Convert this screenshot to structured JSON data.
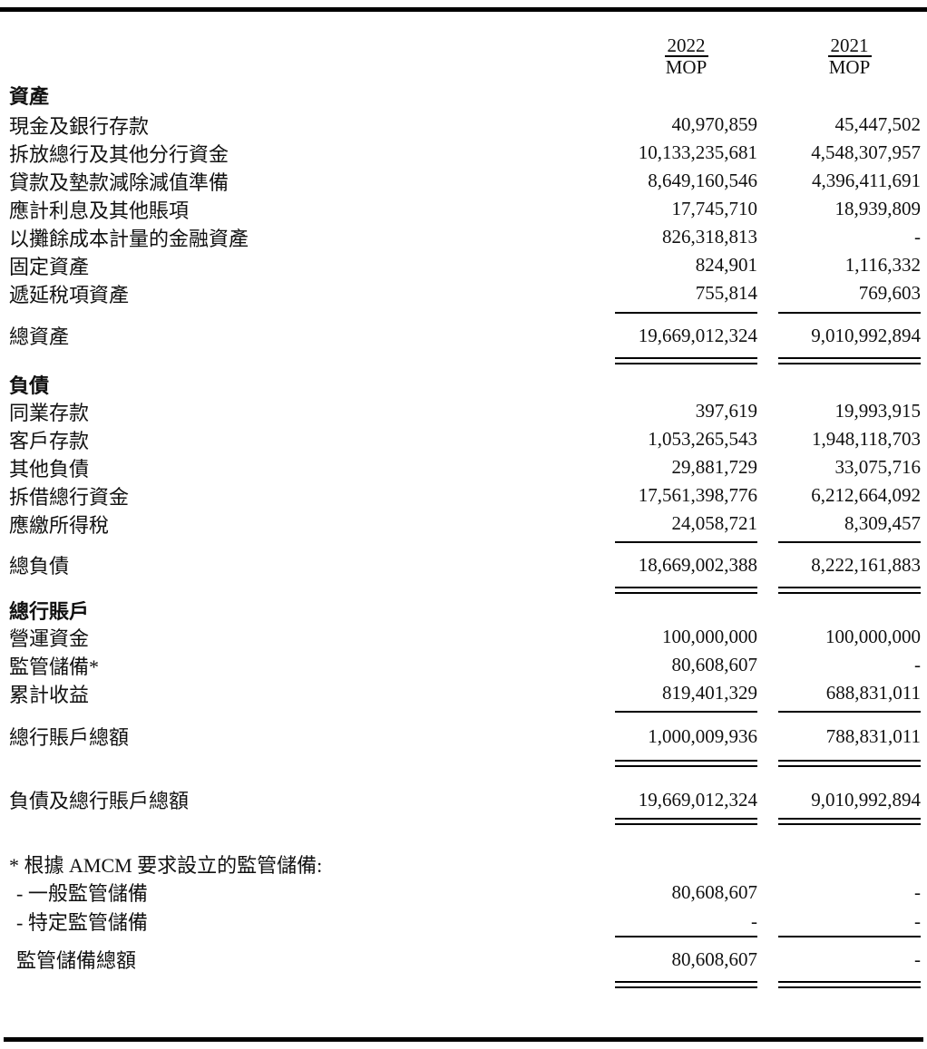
{
  "columns": {
    "y2022": "2022",
    "y2021": "2021",
    "mop": "MOP"
  },
  "assets": {
    "title": "資產",
    "rows": [
      {
        "label": "現金及銀行存款",
        "v1": "40,970,859",
        "v2": "45,447,502"
      },
      {
        "label": "拆放總行及其他分行資金",
        "v1": "10,133,235,681",
        "v2": "4,548,307,957"
      },
      {
        "label": "貸款及墊款減除減值準備",
        "v1": "8,649,160,546",
        "v2": "4,396,411,691"
      },
      {
        "label": "應計利息及其他賬項",
        "v1": "17,745,710",
        "v2": "18,939,809"
      },
      {
        "label": "以攤餘成本計量的金融資產",
        "v1": "826,318,813",
        "v2": "-"
      },
      {
        "label": "固定資產",
        "v1": "824,901",
        "v2": "1,116,332"
      },
      {
        "label": "遞延稅項資產",
        "v1": "755,814",
        "v2": "769,603"
      }
    ],
    "total": {
      "label": "總資產",
      "v1": "19,669,012,324",
      "v2": "9,010,992,894"
    }
  },
  "liabilities": {
    "title": "負債",
    "rows": [
      {
        "label": "同業存款",
        "v1": "397,619",
        "v2": "19,993,915"
      },
      {
        "label": "客戶存款",
        "v1": "1,053,265,543",
        "v2": "1,948,118,703"
      },
      {
        "label": "其他負債",
        "v1": "29,881,729",
        "v2": "33,075,716"
      },
      {
        "label": "拆借總行資金",
        "v1": "17,561,398,776",
        "v2": "6,212,664,092"
      },
      {
        "label": "應繳所得稅",
        "v1": "24,058,721",
        "v2": "8,309,457"
      }
    ],
    "total": {
      "label": "總負債",
      "v1": "18,669,002,388",
      "v2": "8,222,161,883"
    }
  },
  "head_office": {
    "title": "總行賬戶",
    "rows": [
      {
        "label": "營運資金",
        "v1": "100,000,000",
        "v2": "100,000,000"
      },
      {
        "label": "監管儲備*",
        "v1": "80,608,607",
        "v2": "-"
      },
      {
        "label": "累計收益",
        "v1": "819,401,329",
        "v2": "688,831,011"
      }
    ],
    "total": {
      "label": "總行賬戶總額",
      "v1": "1,000,009,936",
      "v2": "788,831,011"
    }
  },
  "grand_total": {
    "label": "負債及總行賬戶總額",
    "v1": "19,669,012,324",
    "v2": "9,010,992,894"
  },
  "footnote": {
    "title": "* 根據 AMCM 要求設立的監管儲備:",
    "rows": [
      {
        "label": "- 一般監管儲備",
        "v1": "80,608,607",
        "v2": "-"
      },
      {
        "label": "- 特定監管儲備",
        "v1": "-",
        "v2": "-"
      }
    ],
    "total": {
      "label": "監管儲備總額",
      "v1": "80,608,607",
      "v2": "-"
    }
  }
}
